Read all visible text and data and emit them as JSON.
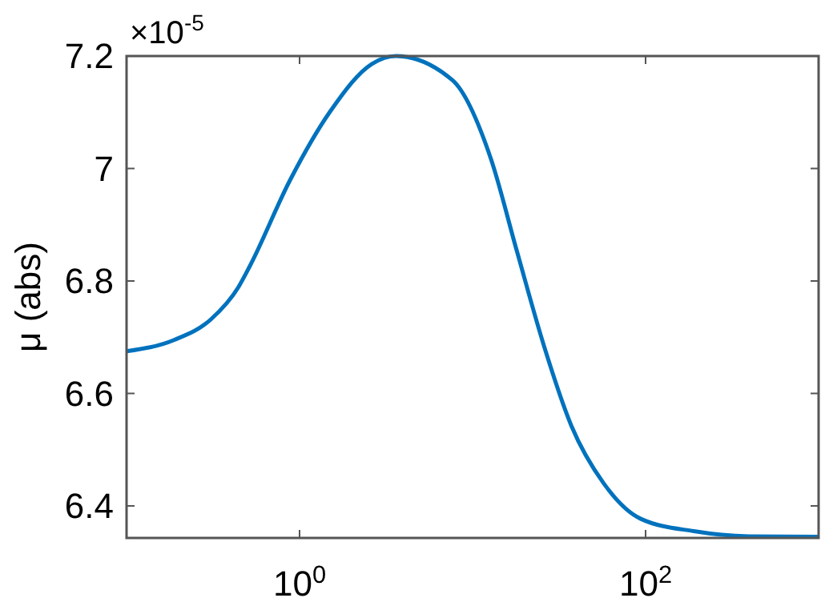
{
  "chart_data": {
    "type": "line",
    "ylabel": "μ (abs)",
    "log": "x",
    "x": [
      0.1,
      0.188,
      0.308,
      0.443,
      0.515,
      0.88,
      1.5,
      2.62,
      3.61,
      7.65,
      12.8,
      18,
      25.9,
      37.3,
      57.3,
      93.8,
      190,
      394,
      1000
    ],
    "series": [
      {
        "color": "#0072bd",
        "values": [
          6.675,
          6.695,
          6.732,
          6.789,
          6.826,
          6.979,
          7.101,
          7.186,
          7.2,
          7.157,
          7.016,
          6.854,
          6.684,
          6.542,
          6.44,
          6.377,
          6.355,
          6.346,
          6.345
        ]
      }
    ],
    "xlim": [
      0.1,
      1000
    ],
    "xticks": [
      {
        "value": 1,
        "label": "10$^{0}$"
      },
      {
        "value": 100,
        "label": "10$^{2}$"
      }
    ],
    "ylim": [
      6.343,
      7.2
    ],
    "yticks": [
      6.4,
      6.6,
      6.8,
      7,
      7.2
    ],
    "annotations": [
      "×10$^{-5}$"
    ],
    "grid": false,
    "line_style": "solid",
    "marker": "none"
  }
}
